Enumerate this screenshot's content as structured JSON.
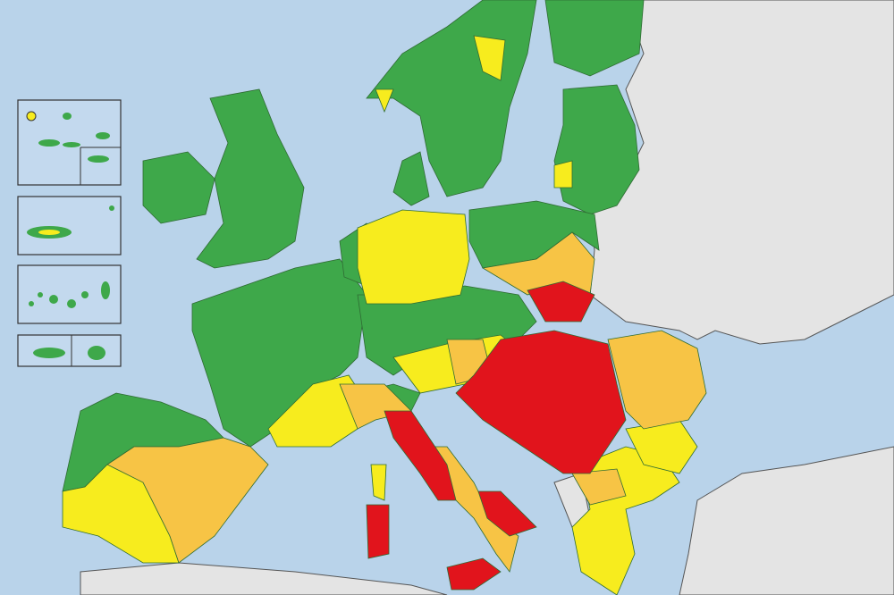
{
  "colors": {
    "sea": "#b9d3ea",
    "land_no_data": "#e4e4e4",
    "green": "#3ea84a",
    "yellow": "#f7ec1e",
    "orange": "#f7c445",
    "red": "#e1141c",
    "coast_highlight": "#f2efb4"
  },
  "insets": [
    "azores",
    "madeira",
    "canary-islands",
    "ceuta-melilla"
  ]
}
